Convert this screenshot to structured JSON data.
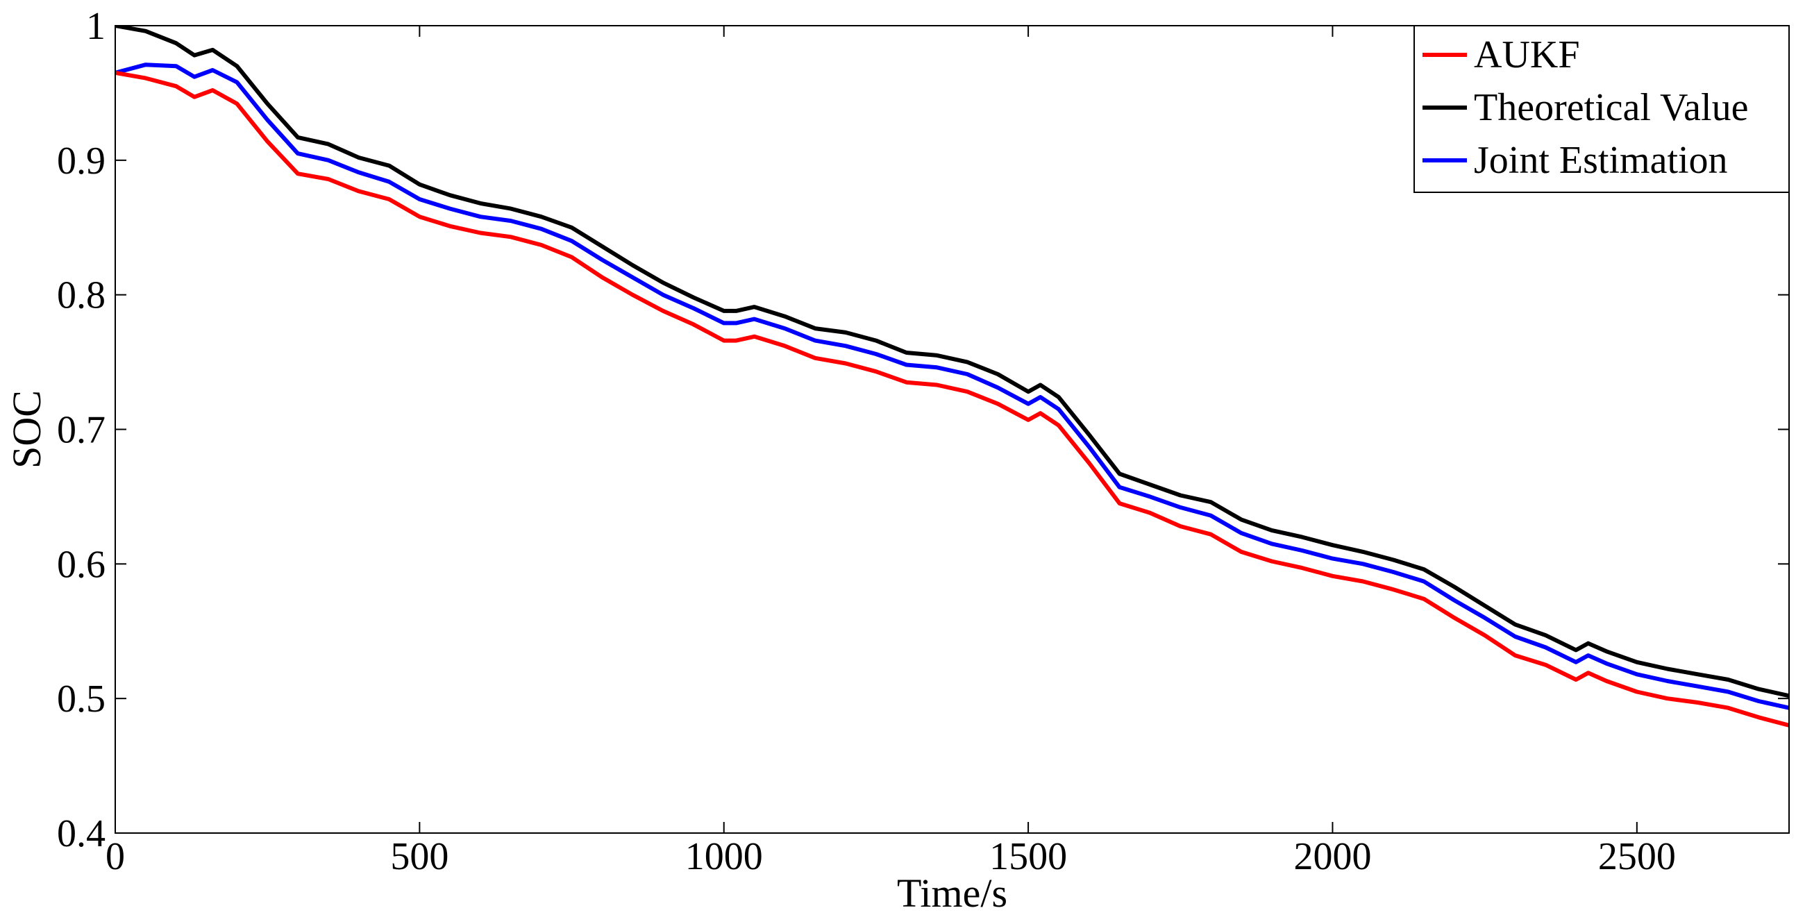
{
  "chart_data": {
    "type": "line",
    "title": "",
    "xlabel": "Time/s",
    "ylabel": "SOC",
    "xlim": [
      0,
      2750
    ],
    "ylim": [
      0.4,
      1.0
    ],
    "xticks": [
      0,
      500,
      1000,
      1500,
      2000,
      2500
    ],
    "yticks": [
      0.4,
      0.5,
      0.6,
      0.7,
      0.8,
      0.9,
      1.0
    ],
    "xtick_labels": [
      "0",
      "500",
      "1000",
      "1500",
      "2000",
      "2500"
    ],
    "ytick_labels": [
      "0.4",
      "0.5",
      "0.6",
      "0.7",
      "0.8",
      "0.9",
      "1"
    ],
    "grid": false,
    "legend_position": "top-right",
    "series": [
      {
        "name": "AUKF",
        "color": "#ff0000",
        "x": [
          0,
          50,
          100,
          130,
          160,
          200,
          250,
          300,
          350,
          400,
          450,
          500,
          550,
          600,
          650,
          700,
          750,
          800,
          850,
          900,
          950,
          1000,
          1020,
          1050,
          1100,
          1150,
          1200,
          1250,
          1300,
          1350,
          1400,
          1450,
          1500,
          1520,
          1550,
          1600,
          1650,
          1700,
          1750,
          1800,
          1850,
          1900,
          1950,
          2000,
          2050,
          2100,
          2150,
          2200,
          2250,
          2300,
          2350,
          2400,
          2420,
          2450,
          2500,
          2550,
          2600,
          2650,
          2700,
          2750
        ],
        "values": [
          0.965,
          0.961,
          0.955,
          0.947,
          0.952,
          0.942,
          0.914,
          0.89,
          0.886,
          0.877,
          0.871,
          0.858,
          0.851,
          0.846,
          0.843,
          0.837,
          0.828,
          0.813,
          0.8,
          0.788,
          0.778,
          0.766,
          0.766,
          0.769,
          0.762,
          0.753,
          0.749,
          0.743,
          0.735,
          0.733,
          0.728,
          0.719,
          0.707,
          0.712,
          0.703,
          0.675,
          0.645,
          0.638,
          0.628,
          0.622,
          0.609,
          0.602,
          0.597,
          0.591,
          0.587,
          0.581,
          0.574,
          0.56,
          0.547,
          0.532,
          0.525,
          0.514,
          0.519,
          0.513,
          0.505,
          0.5,
          0.497,
          0.493,
          0.486,
          0.48
        ]
      },
      {
        "name": "Theoretical Value",
        "color": "#000000",
        "x": [
          0,
          50,
          100,
          130,
          160,
          200,
          250,
          300,
          350,
          400,
          450,
          500,
          550,
          600,
          650,
          700,
          750,
          800,
          850,
          900,
          950,
          1000,
          1020,
          1050,
          1100,
          1150,
          1200,
          1250,
          1300,
          1350,
          1400,
          1450,
          1500,
          1520,
          1550,
          1600,
          1650,
          1700,
          1750,
          1800,
          1850,
          1900,
          1950,
          2000,
          2050,
          2100,
          2150,
          2200,
          2250,
          2300,
          2350,
          2400,
          2420,
          2450,
          2500,
          2550,
          2600,
          2650,
          2700,
          2750
        ],
        "values": [
          1.0,
          0.996,
          0.987,
          0.978,
          0.982,
          0.97,
          0.942,
          0.917,
          0.912,
          0.902,
          0.896,
          0.882,
          0.874,
          0.868,
          0.864,
          0.858,
          0.85,
          0.836,
          0.822,
          0.809,
          0.798,
          0.788,
          0.788,
          0.791,
          0.784,
          0.775,
          0.772,
          0.766,
          0.757,
          0.755,
          0.75,
          0.741,
          0.728,
          0.733,
          0.724,
          0.696,
          0.667,
          0.659,
          0.651,
          0.646,
          0.633,
          0.625,
          0.62,
          0.614,
          0.609,
          0.603,
          0.596,
          0.583,
          0.569,
          0.555,
          0.547,
          0.536,
          0.541,
          0.535,
          0.527,
          0.522,
          0.518,
          0.514,
          0.507,
          0.502
        ]
      },
      {
        "name": "Joint Estimation",
        "color": "#0000ff",
        "x": [
          0,
          50,
          100,
          130,
          160,
          200,
          250,
          300,
          350,
          400,
          450,
          500,
          550,
          600,
          650,
          700,
          750,
          800,
          850,
          900,
          950,
          1000,
          1020,
          1050,
          1100,
          1150,
          1200,
          1250,
          1300,
          1350,
          1400,
          1450,
          1500,
          1520,
          1550,
          1600,
          1650,
          1700,
          1750,
          1800,
          1850,
          1900,
          1950,
          2000,
          2050,
          2100,
          2150,
          2200,
          2250,
          2300,
          2350,
          2400,
          2420,
          2450,
          2500,
          2550,
          2600,
          2650,
          2700,
          2750
        ],
        "values": [
          0.965,
          0.971,
          0.97,
          0.962,
          0.967,
          0.958,
          0.93,
          0.905,
          0.9,
          0.891,
          0.884,
          0.871,
          0.864,
          0.858,
          0.855,
          0.849,
          0.84,
          0.826,
          0.813,
          0.8,
          0.79,
          0.779,
          0.779,
          0.782,
          0.775,
          0.766,
          0.762,
          0.756,
          0.748,
          0.746,
          0.741,
          0.731,
          0.719,
          0.724,
          0.715,
          0.687,
          0.657,
          0.65,
          0.642,
          0.636,
          0.623,
          0.615,
          0.61,
          0.604,
          0.6,
          0.594,
          0.587,
          0.573,
          0.56,
          0.546,
          0.538,
          0.527,
          0.532,
          0.526,
          0.518,
          0.513,
          0.509,
          0.505,
          0.498,
          0.493
        ]
      }
    ]
  }
}
